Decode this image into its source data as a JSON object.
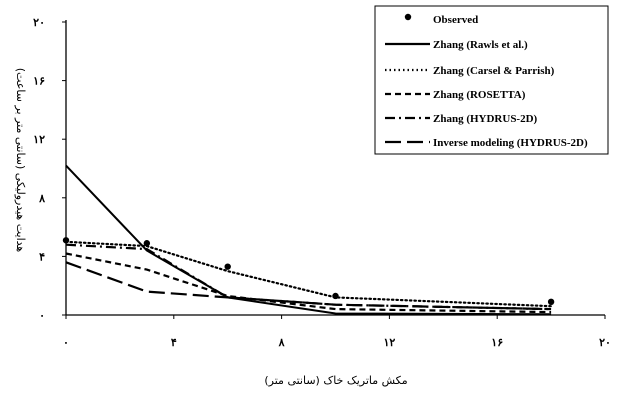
{
  "chart_data": {
    "type": "line",
    "xlabel": "مکش ماتریک خاک (سانتی متر)",
    "ylabel": "هدایت هیدرولیکی (سانتی متر بر ساعت)",
    "xlim": [
      0,
      20
    ],
    "ylim": [
      0,
      20
    ],
    "x_ticks": [
      0,
      4,
      8,
      12,
      16,
      20
    ],
    "x_tick_labels": [
      "۰",
      "۴",
      "۸",
      "۱۲",
      "۱۶",
      "۲۰"
    ],
    "y_ticks": [
      0,
      4,
      8,
      12,
      16,
      20
    ],
    "y_tick_labels": [
      "۰",
      "۴",
      "۸",
      "۱۲",
      "۱۶",
      "۲۰"
    ],
    "grid": false,
    "legend_position": "top-right",
    "series": [
      {
        "name": "Observed",
        "style": "points",
        "x": [
          0,
          3,
          6,
          10,
          18
        ],
        "y": [
          5.1,
          4.9,
          3.3,
          1.3,
          0.9
        ]
      },
      {
        "name": "Zhang (Rawls et al.)",
        "style": "solid",
        "x": [
          0,
          3,
          6,
          10,
          18
        ],
        "y": [
          10.2,
          4.4,
          1.2,
          0.1,
          0.05
        ]
      },
      {
        "name": "Zhang (Carsel & Parrish)",
        "style": "dotted",
        "x": [
          0,
          3,
          6,
          10,
          18
        ],
        "y": [
          5.0,
          4.7,
          3.0,
          1.2,
          0.6
        ]
      },
      {
        "name": "Zhang (ROSETTA)",
        "style": "short-dash",
        "x": [
          0,
          3,
          6,
          10,
          18
        ],
        "y": [
          4.2,
          3.1,
          1.3,
          0.4,
          0.2
        ]
      },
      {
        "name": "Zhang (HYDRUS-2D)",
        "style": "dash-dot",
        "x": [
          0,
          3,
          6,
          10,
          18
        ],
        "y": [
          4.8,
          4.5,
          1.2,
          0.7,
          0.4
        ]
      },
      {
        "name": "Inverse modeling (HYDRUS-2D)",
        "style": "long-dash",
        "x": [
          0,
          3,
          6,
          10,
          18
        ],
        "y": [
          3.6,
          1.6,
          1.2,
          0.7,
          0.4
        ]
      }
    ]
  }
}
